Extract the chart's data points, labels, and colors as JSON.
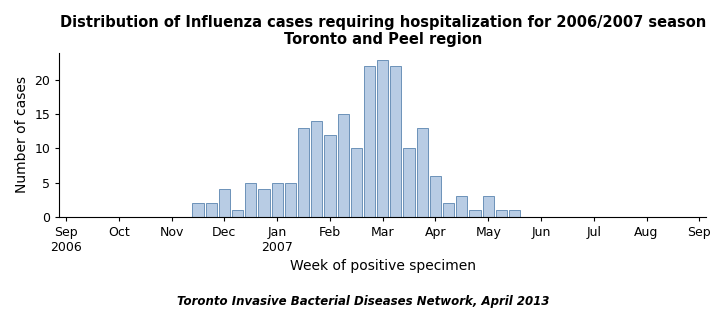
{
  "title_line1": "Distribution of Influenza cases requiring hospitalization for 2006/2007 season",
  "title_line2": "Toronto and Peel region",
  "xlabel": "Week of positive specimen",
  "ylabel": "Number of cases",
  "footnote": "Toronto Invasive Bacterial Diseases Network, April 2013",
  "bar_color": "#b8cce4",
  "bar_edge_color": "#5a85b0",
  "background_color": "#ffffff",
  "ylim": [
    0,
    24
  ],
  "yticks": [
    0,
    5,
    10,
    15,
    20
  ],
  "bar_width": 0.85,
  "title_fontsize": 10.5,
  "axis_label_fontsize": 10,
  "tick_label_fontsize": 9,
  "footnote_fontsize": 8.5,
  "month_labels": [
    "Sep\n2006",
    "Oct",
    "Nov",
    "Dec",
    "Jan\n2007",
    "Feb",
    "Mar",
    "Apr",
    "May",
    "Jun",
    "Jul",
    "Aug",
    "Sep"
  ],
  "month_positions": [
    0,
    4,
    8,
    12,
    16,
    20,
    24,
    28,
    32,
    36,
    40,
    44,
    48
  ],
  "bar_values": [
    2,
    2,
    4,
    1,
    5,
    4,
    5,
    5,
    13,
    14,
    12,
    15,
    10,
    22,
    23,
    22,
    10,
    13,
    6,
    2,
    3,
    1,
    3,
    1,
    1
  ],
  "bar_start_week": 10,
  "xlim": [
    -0.5,
    48.5
  ]
}
